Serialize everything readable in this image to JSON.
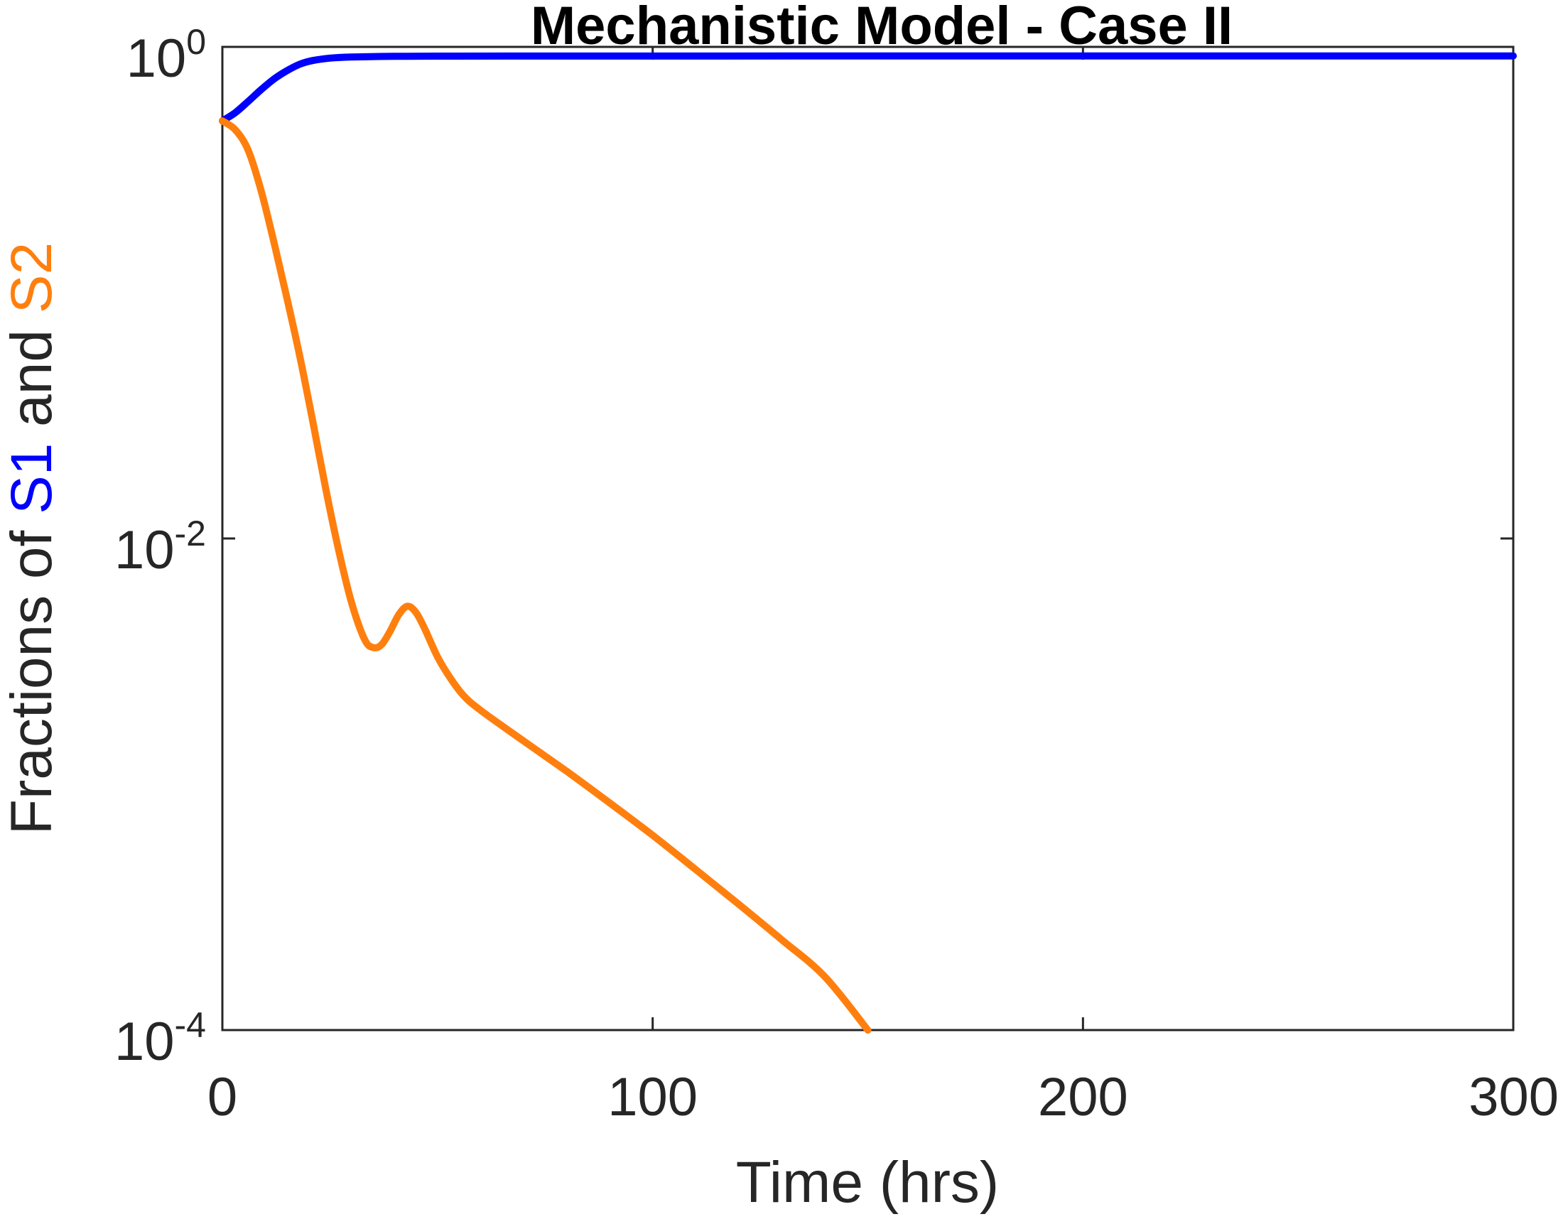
{
  "chart_data": {
    "type": "line",
    "title": "Mechanistic Model - Case II",
    "xlabel": "Time (hrs)",
    "ylabel": {
      "prefix": "Fractions of ",
      "s1": "S1",
      "middle": " and ",
      "s2": "S2"
    },
    "yscale": "log",
    "xlim": [
      0,
      300
    ],
    "ylim": [
      0.0001,
      1
    ],
    "grid": false,
    "legend": "none",
    "x_ticks": [
      {
        "value": 0,
        "label": "0"
      },
      {
        "value": 100,
        "label": "100"
      },
      {
        "value": 200,
        "label": "200"
      },
      {
        "value": 300,
        "label": "300"
      }
    ],
    "y_ticks": [
      {
        "value": 0.0001,
        "base": "10",
        "exp": "-4"
      },
      {
        "value": 0.01,
        "base": "10",
        "exp": "-2"
      },
      {
        "value": 1,
        "base": "10",
        "exp": "0"
      }
    ],
    "series": [
      {
        "label": "S1",
        "color": "#0000ff",
        "points": [
          [
            0,
            0.5
          ],
          [
            3,
            0.54
          ],
          [
            6,
            0.6
          ],
          [
            9,
            0.67
          ],
          [
            12,
            0.74
          ],
          [
            15,
            0.8
          ],
          [
            18,
            0.85
          ],
          [
            21,
            0.88
          ],
          [
            25,
            0.9
          ],
          [
            30,
            0.91
          ],
          [
            40,
            0.915
          ],
          [
            50,
            0.917
          ],
          [
            75,
            0.918
          ],
          [
            100,
            0.918
          ],
          [
            150,
            0.919
          ],
          [
            200,
            0.919
          ],
          [
            250,
            0.919
          ],
          [
            300,
            0.919
          ]
        ]
      },
      {
        "label": "S2",
        "color": "#ff7f0e",
        "points": [
          [
            0,
            0.5
          ],
          [
            3,
            0.46
          ],
          [
            6,
            0.38
          ],
          [
            9,
            0.26
          ],
          [
            12,
            0.16
          ],
          [
            15,
            0.095
          ],
          [
            18,
            0.055
          ],
          [
            21,
            0.03
          ],
          [
            24,
            0.016
          ],
          [
            27,
            0.009
          ],
          [
            30,
            0.0055
          ],
          [
            33,
            0.0039
          ],
          [
            35,
            0.0036
          ],
          [
            37,
            0.0037
          ],
          [
            39,
            0.0042
          ],
          [
            41,
            0.0049
          ],
          [
            43,
            0.0053
          ],
          [
            45,
            0.005
          ],
          [
            47,
            0.0043
          ],
          [
            50,
            0.0033
          ],
          [
            53,
            0.0027
          ],
          [
            56,
            0.0023
          ],
          [
            60,
            0.002
          ],
          [
            70,
            0.0015
          ],
          [
            80,
            0.00113
          ],
          [
            90,
            0.00084
          ],
          [
            100,
            0.00062
          ],
          [
            110,
            0.00045
          ],
          [
            120,
            0.000325
          ],
          [
            130,
            0.000233
          ],
          [
            140,
            0.000165
          ],
          [
            150,
            0.0001
          ]
        ]
      }
    ]
  }
}
